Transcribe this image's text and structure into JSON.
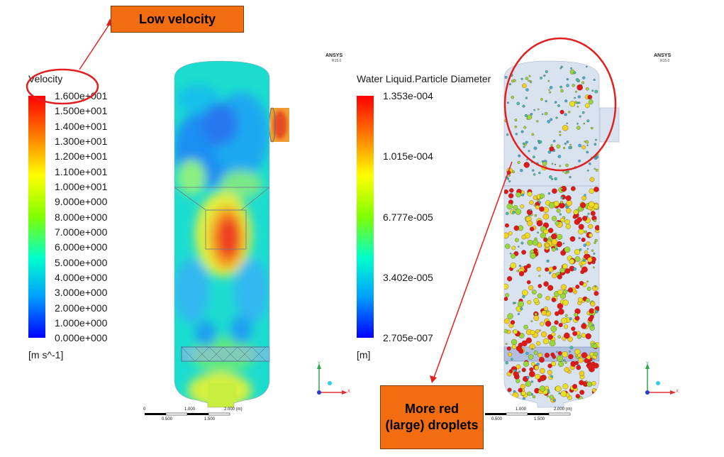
{
  "callouts": {
    "low_velocity": "Low velocity",
    "more_red": "More red (large) droplets"
  },
  "left_panel": {
    "legend_title": "Velocity",
    "ticks": [
      "1.600e+001",
      "1.500e+001",
      "1.400e+001",
      "1.300e+001",
      "1.200e+001",
      "1.100e+001",
      "1.000e+001",
      "9.000e+000",
      "8.000e+000",
      "7.000e+000",
      "6.000e+000",
      "5.000e+000",
      "4.000e+000",
      "3.000e+000",
      "2.000e+000",
      "1.000e+000",
      "0.000e+000"
    ],
    "unit": "[m s^-1]",
    "brand": "ANSYS",
    "brand_version": "R15.0",
    "scale": {
      "top": [
        "0",
        "1.000",
        "2.000 (m)"
      ],
      "bottom": [
        "0.500",
        "1.500"
      ]
    },
    "axes": {
      "y": "Y",
      "x": "X"
    }
  },
  "right_panel": {
    "legend_title": "Water Liquid.Particle Diameter",
    "ticks": [
      "1.353e-004",
      "1.015e-004",
      "6.777e-005",
      "3.402e-005",
      "2.705e-007"
    ],
    "unit": "[m]",
    "brand": "ANSYS",
    "brand_version": "R15.0",
    "scale": {
      "top": [
        "1.000",
        "2.000 (m)"
      ],
      "bottom": [
        "0.500",
        "1.500"
      ]
    },
    "axes": {
      "y": "Y",
      "x": "X"
    }
  },
  "colors": {
    "callout_fill": "#f26d10",
    "annotation_red": "#e02020",
    "colormap": [
      "#ff0000",
      "#ff8000",
      "#ffff00",
      "#00ff00",
      "#00ffff",
      "#0080ff",
      "#0000ff"
    ]
  }
}
